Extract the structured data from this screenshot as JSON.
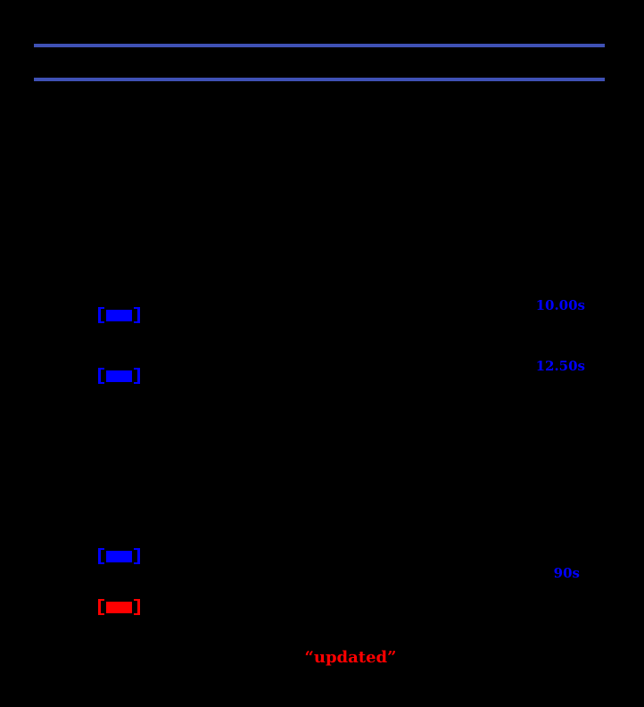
{
  "page": {
    "background_color": "#000000",
    "accent_rule_color": "#3F51B5",
    "link_color": "#0000FF",
    "alert_color": "#FF0000"
  },
  "header": {
    "top_rule": {
      "color": "#3F51B5"
    },
    "bottom_rule": {
      "color": "#3F51B5"
    }
  },
  "link_buttons": [
    {
      "left_bracket": "[",
      "right_bracket": "]",
      "color": "#0000FF"
    },
    {
      "left_bracket": "[",
      "right_bracket": "]",
      "color": "#0000FF"
    },
    {
      "left_bracket": "[",
      "right_bracket": "]",
      "color": "#0000FF"
    },
    {
      "left_bracket": "[",
      "right_bracket": "]",
      "color": "#FF0000"
    }
  ],
  "margin_notes": [
    {
      "text": "10.00s",
      "color": "#0000FF"
    },
    {
      "text": "12.50s",
      "color": "#0000FF"
    },
    {
      "text": "90s",
      "color": "#0000FF"
    }
  ],
  "footer_note": {
    "text": "“updated”",
    "color": "#FF0000"
  }
}
